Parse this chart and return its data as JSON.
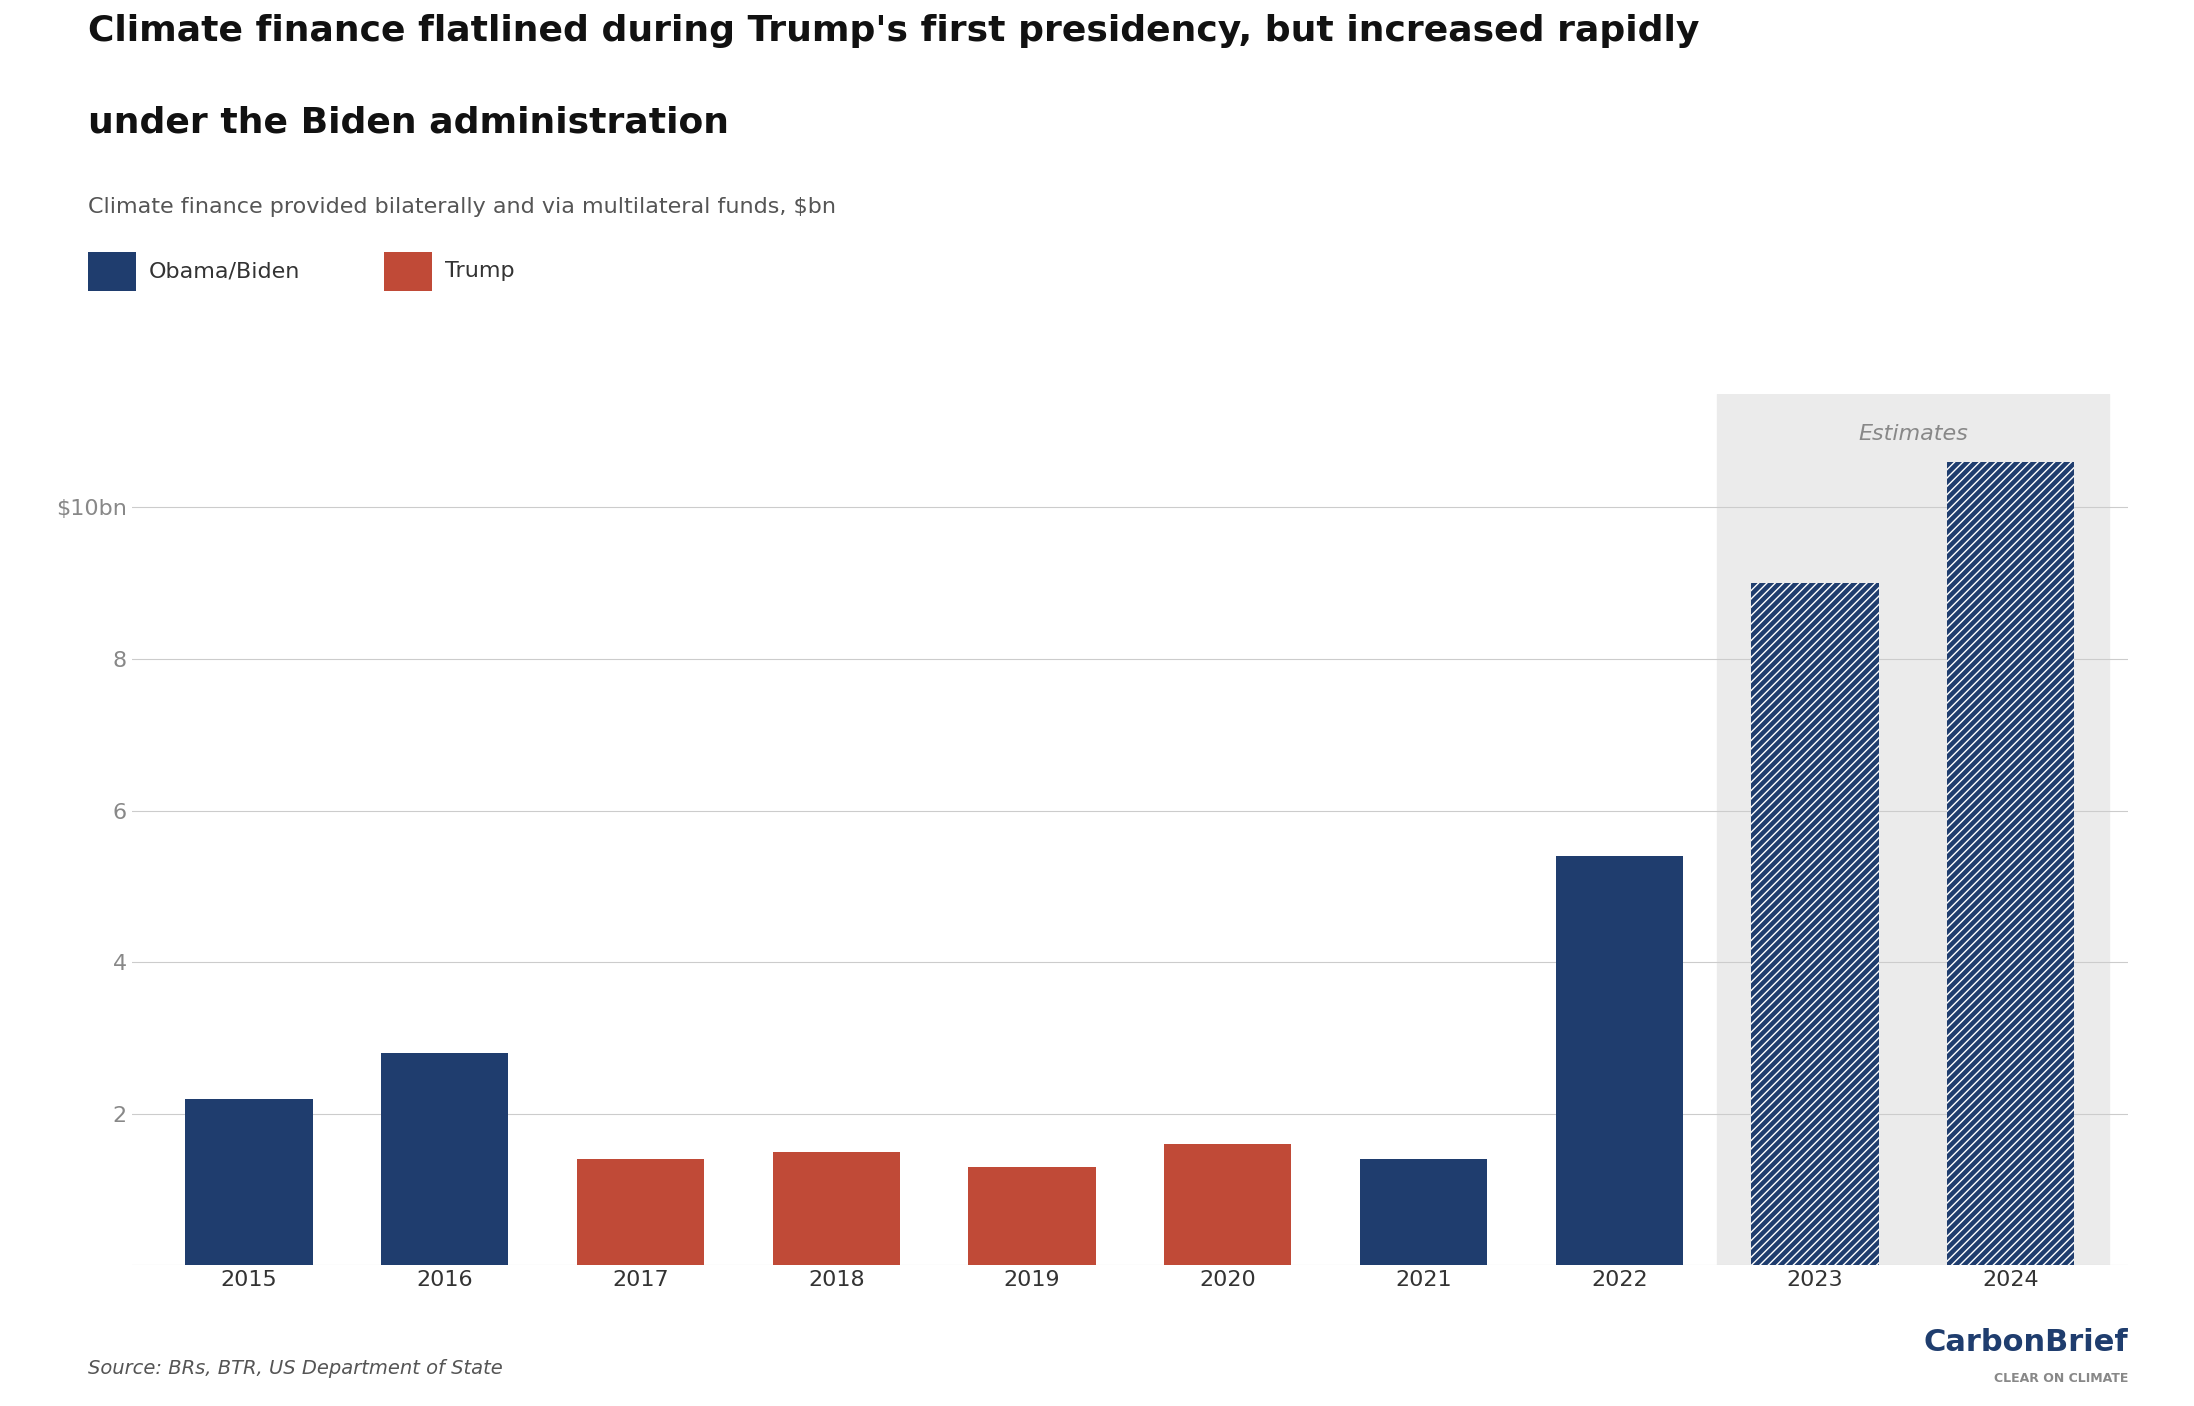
{
  "years": [
    "2015",
    "2016",
    "2017",
    "2018",
    "2019",
    "2020",
    "2021",
    "2022",
    "2023",
    "2024"
  ],
  "values": [
    2.2,
    2.8,
    1.4,
    1.5,
    1.3,
    1.6,
    1.4,
    5.4,
    9.0,
    10.6
  ],
  "colors": [
    "#1f3d6e",
    "#1f3d6e",
    "#c04a37",
    "#c04a37",
    "#c04a37",
    "#c04a37",
    "#1f3d6e",
    "#1f3d6e",
    "#1f3d6e",
    "#1f3d6e"
  ],
  "is_estimate": [
    false,
    false,
    false,
    false,
    false,
    false,
    false,
    false,
    true,
    true
  ],
  "is_trump": [
    false,
    false,
    true,
    true,
    true,
    true,
    false,
    false,
    false,
    false
  ],
  "title_line1": "Climate finance flatlined during Trump's first presidency, but increased rapidly",
  "title_line2": "under the Biden administration",
  "subtitle": "Climate finance provided bilaterally and via multilateral funds, $bn",
  "source_text": "Source: BRs, BTR, US Department of State",
  "yticks": [
    0,
    2,
    4,
    6,
    8,
    10
  ],
  "ytick_labels": [
    "",
    "2",
    "4",
    "6",
    "8",
    "$10bn"
  ],
  "ylim": [
    0,
    11.5
  ],
  "estimates_label": "Estimates",
  "legend_obama_biden": "Obama/Biden",
  "legend_trump": "Trump",
  "bg_color": "#ffffff",
  "estimates_bg": "#ebebeb",
  "blue_color": "#1f3d6e",
  "red_color": "#c04a37",
  "grid_color": "#cccccc",
  "title_fontsize": 26,
  "subtitle_fontsize": 16,
  "source_fontsize": 14
}
